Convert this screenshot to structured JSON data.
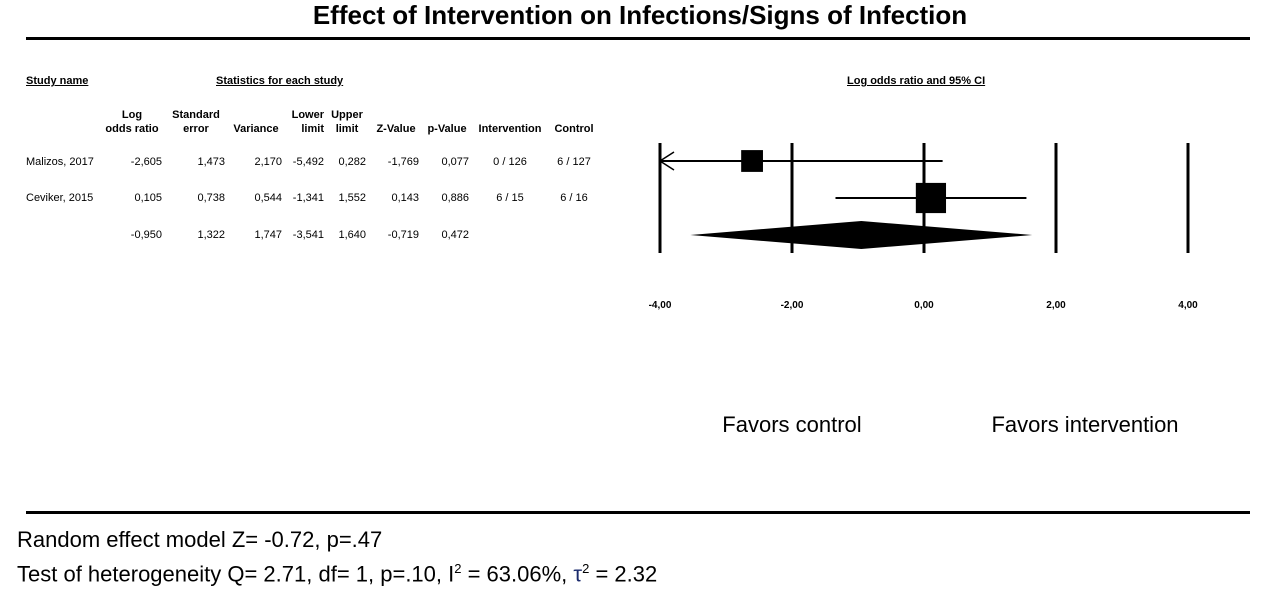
{
  "title": "Effect of Intervention on Infections/Signs of Infection",
  "headers": {
    "study_name": "Study name",
    "statistics": "Statistics for each study",
    "plot": "Log odds ratio and 95% CI"
  },
  "columns": [
    [
      "Log",
      "odds ratio"
    ],
    [
      "Standard",
      "error"
    ],
    [
      "",
      "Variance"
    ],
    [
      "Lower",
      "limit"
    ],
    [
      "Upper",
      "limit"
    ],
    [
      "",
      "Z-Value"
    ],
    [
      "",
      "p-Value"
    ],
    [
      "",
      "Intervention"
    ],
    [
      "",
      "Control"
    ]
  ],
  "rows": [
    {
      "study": "Malizos, 2017",
      "values": [
        "-2,605",
        "1,473",
        "2,170",
        "-5,492",
        "0,282",
        "-1,769",
        "0,077",
        "0 / 126",
        "6 / 127"
      ]
    },
    {
      "study": "Ceviker, 2015",
      "values": [
        "0,105",
        "0,738",
        "0,544",
        "-1,341",
        "1,552",
        "0,143",
        "0,886",
        "6 / 15",
        "6 / 16"
      ]
    },
    {
      "study": "",
      "values": [
        "-0,950",
        "1,322",
        "1,747",
        "-3,541",
        "1,640",
        "-0,719",
        "0,472",
        "",
        ""
      ]
    }
  ],
  "chart_data": {
    "type": "forest",
    "x_ticks": [
      "-4,00",
      "-2,00",
      "0,00",
      "2,00",
      "4,00"
    ],
    "xlim": [
      -4,
      4
    ],
    "studies": [
      {
        "name": "Malizos, 2017",
        "estimate": -2.605,
        "lower": -5.492,
        "upper": 0.282,
        "lower_truncated": true,
        "weight": 0.325
      },
      {
        "name": "Ceviker, 2015",
        "estimate": 0.105,
        "lower": -1.341,
        "upper": 1.552,
        "weight": 0.675
      }
    ],
    "summary": {
      "estimate": -0.95,
      "lower": -3.541,
      "upper": 1.64
    },
    "favors_left": "Favors control",
    "favors_right": "Favors intervention"
  },
  "footer": {
    "line1": "Random effect model Z= -0.72, p=.47",
    "line2_pre": "Test of heterogeneity Q= 2.71, df= 1, p=.10, I",
    "line2_sup1": "2",
    "line2_mid": " = 63.06%, ",
    "tau": "τ",
    "line2_sup2": "2",
    "line2_post": " = 2.32"
  }
}
